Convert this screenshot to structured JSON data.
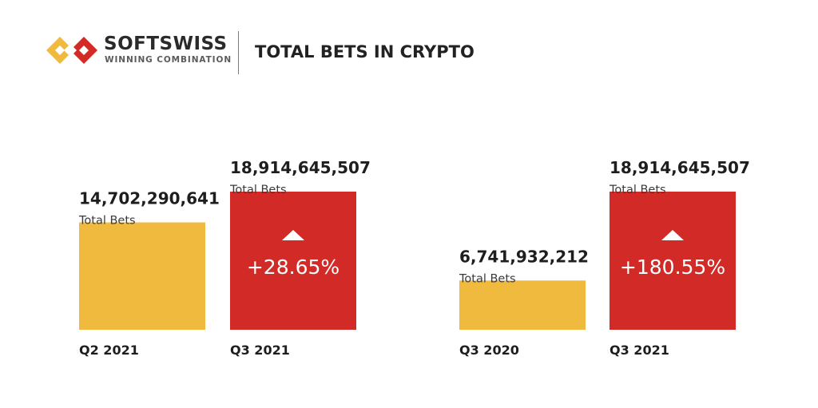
{
  "brand": {
    "name": "SOFTSWISS",
    "tagline": "WINNING COMBINATION",
    "colors": {
      "red": "#d22a26",
      "yellow": "#f0ba3e"
    }
  },
  "chart_data": [
    {
      "type": "bar",
      "title": "TOTAL BETS IN CRYPTO",
      "categories": [
        "Q2 2021",
        "Q3 2021"
      ],
      "values": [
        14702290641,
        18914645507
      ],
      "value_labels": [
        "14,702,290,641",
        "18,914,645,507"
      ],
      "series_label": "Total Bets",
      "change_label": "+28.65%",
      "change_direction": "up",
      "colors": [
        "#f0ba3e",
        "#d22a26"
      ]
    },
    {
      "type": "bar",
      "title": "TOTAL BETS IN CRYPTO",
      "categories": [
        "Q3 2020",
        "Q3 2021"
      ],
      "values": [
        6741932212,
        18914645507
      ],
      "value_labels": [
        "6,741,932,212",
        "18,914,645,507"
      ],
      "series_label": "Total Bets",
      "change_label": "+180.55%",
      "change_direction": "up",
      "colors": [
        "#f0ba3e",
        "#d22a26"
      ]
    }
  ]
}
